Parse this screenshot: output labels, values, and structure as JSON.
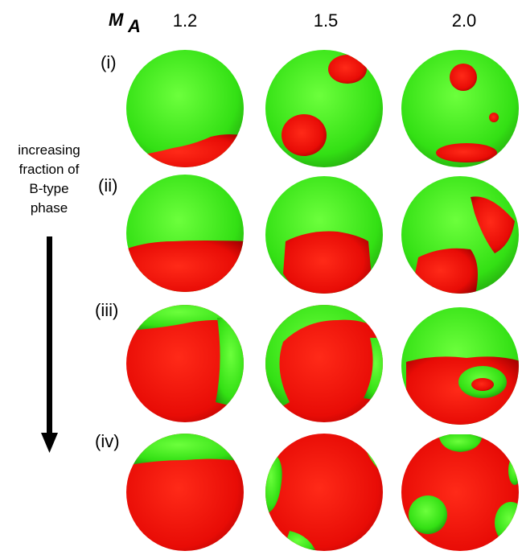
{
  "header": {
    "symbol": "M",
    "subscript": "A",
    "columns": [
      "1.2",
      "1.5",
      "2.0"
    ]
  },
  "rows": [
    "(i)",
    "(ii)",
    "(iii)",
    "(iv)"
  ],
  "side_note": {
    "lines": [
      "increasing",
      "fraction of",
      "B-type",
      "phase"
    ]
  }
}
